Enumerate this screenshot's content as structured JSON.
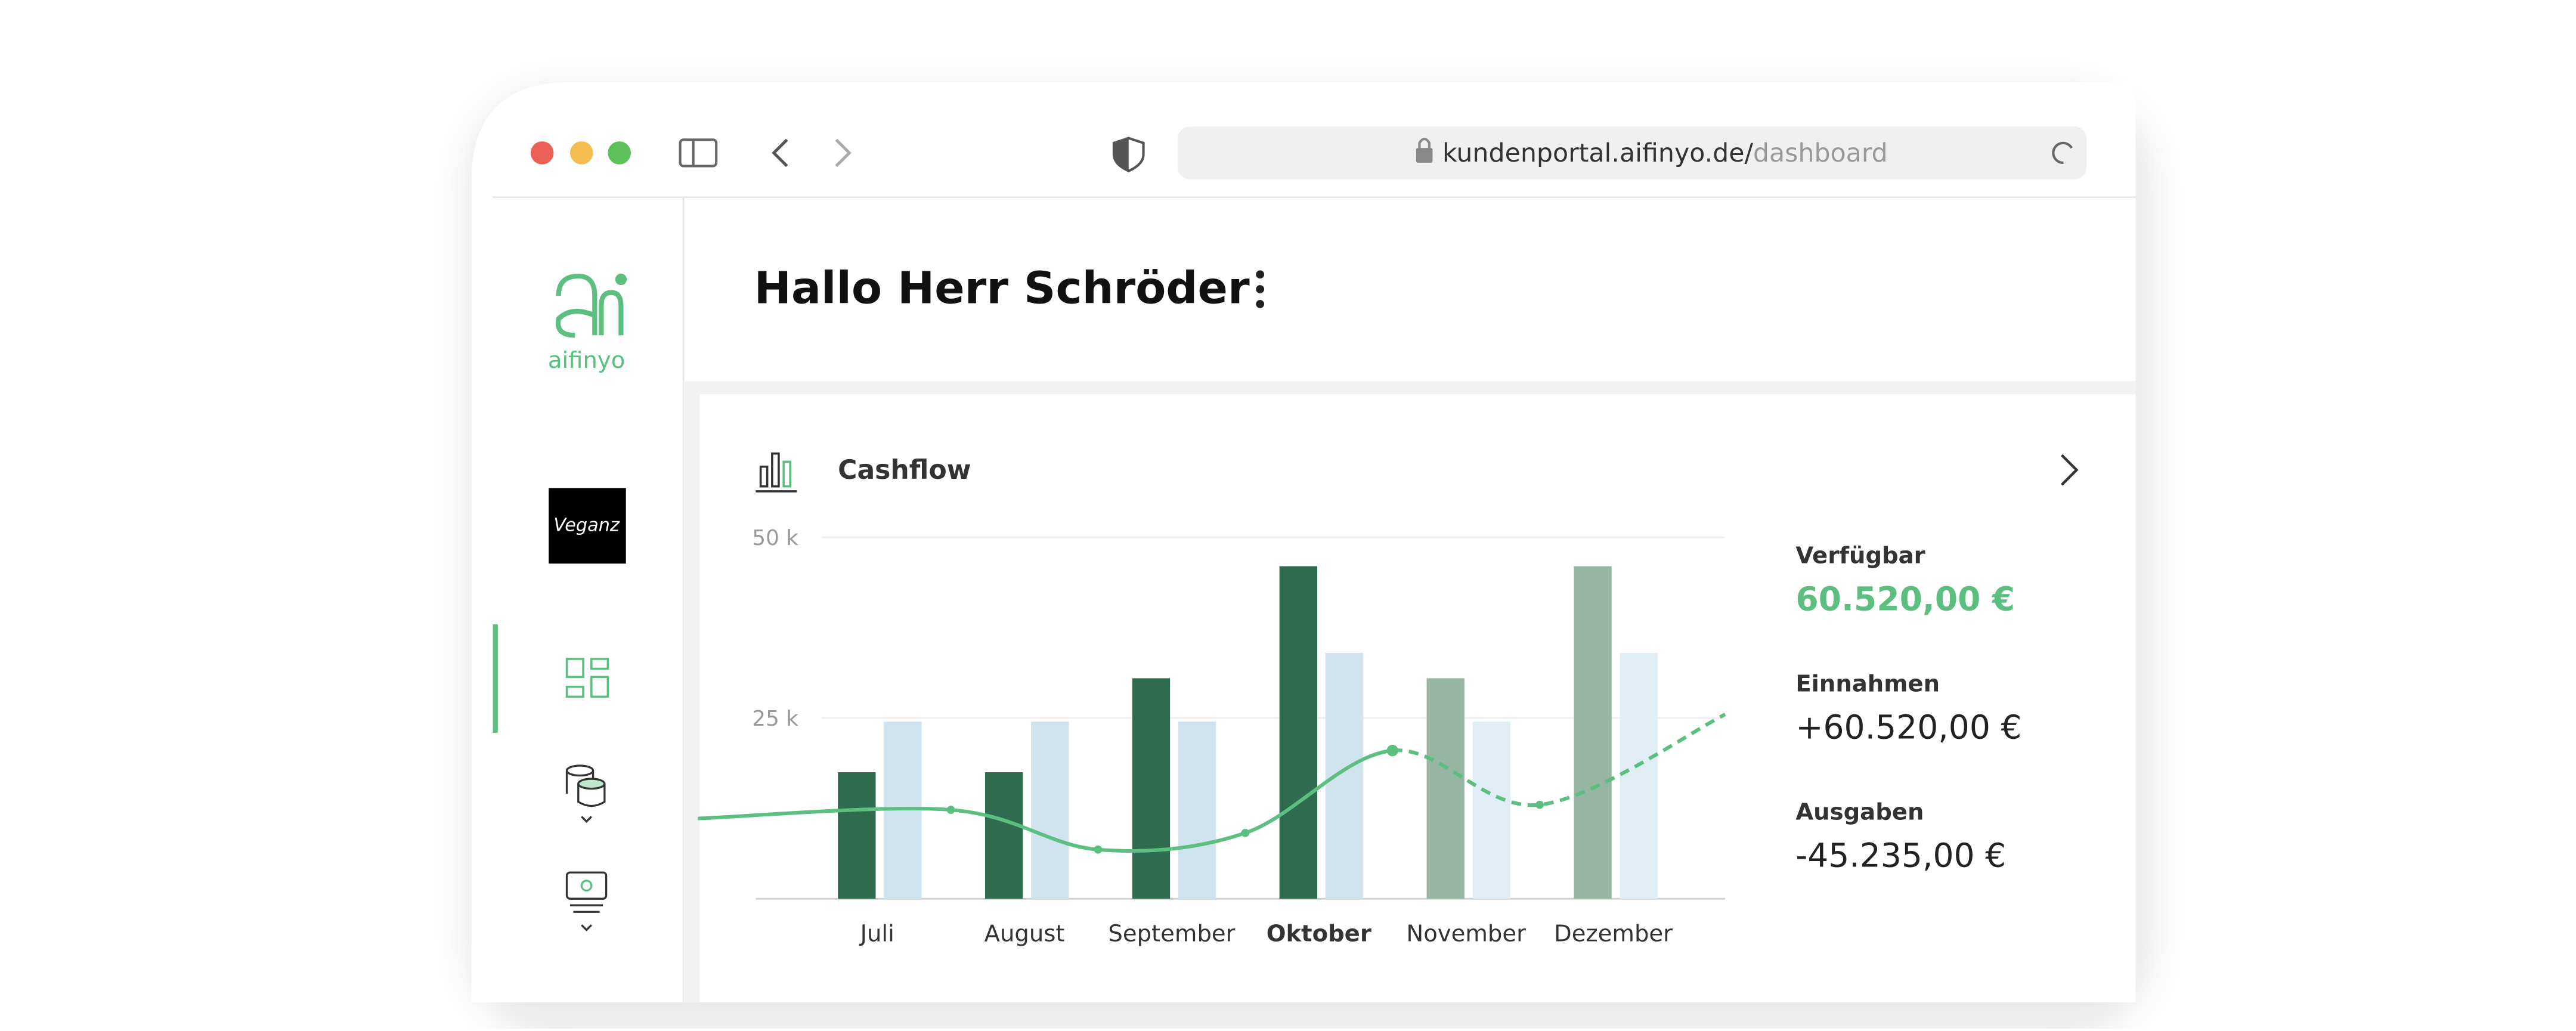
{
  "browser": {
    "url_host": "kundenportal.aifinyo.de/",
    "url_path": "dashboard"
  },
  "sidebar": {
    "logo_text": "aifinyo",
    "company_logo": "Veganz"
  },
  "header": {
    "title": "Hallo Herr Schröder"
  },
  "card": {
    "title": "Cashflow"
  },
  "chart_data": {
    "type": "bar",
    "categories": [
      "Juli",
      "August",
      "September",
      "Oktober",
      "November",
      "Dezember"
    ],
    "highlight_index": 3,
    "series": [
      {
        "colors": [
          "#2e6b4f",
          "#2e6b4f",
          "#2e6b4f",
          "#2e6b4f",
          "#97b5a3",
          "#97b5a3"
        ],
        "values": [
          17500,
          17500,
          30500,
          46000,
          30500,
          46000
        ]
      },
      {
        "colors": [
          "#cfe4ef",
          "#cfe4ef",
          "#cfe4ef",
          "#cfe4ef",
          "#e0edf5",
          "#e0edf5"
        ],
        "values": [
          24500,
          24500,
          24500,
          34000,
          24500,
          34000
        ]
      }
    ],
    "line": {
      "type": "line",
      "color": "#5cbf7f",
      "x": [
        -1.22,
        0.5,
        1.5,
        2.5,
        3.5,
        4.5,
        5.76
      ],
      "values": [
        11100,
        12300,
        6800,
        9100,
        20500,
        13000,
        25500
      ],
      "dash_from_index": 4
    },
    "ylim": [
      0,
      50000
    ],
    "yticks": [
      {
        "value": 25000,
        "label": "25 k"
      },
      {
        "value": 50000,
        "label": "50 k"
      }
    ],
    "grid": true
  },
  "summary": [
    {
      "label": "Verfügbar",
      "value": "60.520,00 €"
    },
    {
      "label": "Einnahmen",
      "value": "+60.520,00 €"
    },
    {
      "label": "Ausgaben",
      "value": "-45.235,00 €"
    }
  ]
}
